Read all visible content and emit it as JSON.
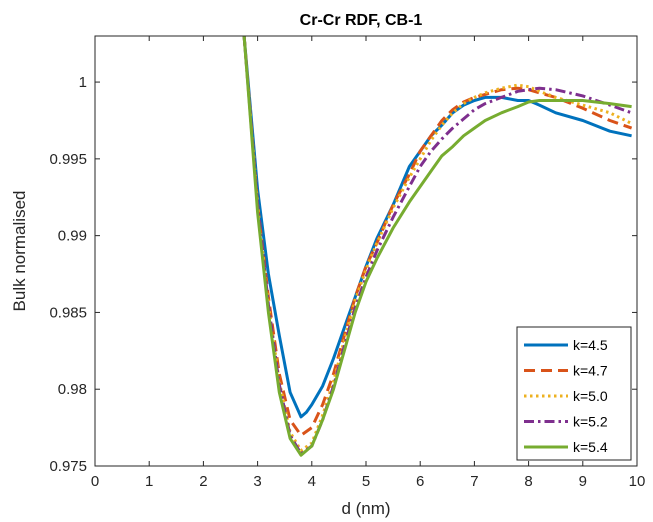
{
  "chart_data": {
    "type": "line",
    "title": "Cr-Cr RDF, CB-1",
    "xlabel": "d (nm)",
    "ylabel": "Bulk normalised",
    "xlim": [
      0,
      10
    ],
    "ylim": [
      0.975,
      1.003
    ],
    "xticks": [
      0,
      1,
      2,
      3,
      4,
      5,
      6,
      7,
      8,
      9,
      10
    ],
    "xtick_labels": [
      "0",
      "1",
      "2",
      "3",
      "4",
      "5",
      "6",
      "7",
      "8",
      "9",
      "10"
    ],
    "yticks": [
      0.975,
      0.98,
      0.985,
      0.99,
      0.995,
      1.0
    ],
    "ytick_labels": [
      "0.975",
      "0.98",
      "0.985",
      "0.99",
      "0.995",
      "1"
    ],
    "grid": false,
    "legend_position": "bottom-right",
    "series": [
      {
        "name": "k=4.5",
        "color": "#0072BD",
        "dash": "solid",
        "x": [
          2.75,
          3.0,
          3.2,
          3.4,
          3.6,
          3.8,
          3.9,
          4.0,
          4.2,
          4.4,
          4.6,
          4.8,
          5.0,
          5.2,
          5.5,
          5.8,
          6.0,
          6.2,
          6.4,
          6.6,
          6.8,
          7.0,
          7.2,
          7.5,
          7.8,
          8.0,
          8.2,
          8.5,
          9.0,
          9.5,
          9.9
        ],
        "y": [
          1.003,
          0.993,
          0.9875,
          0.9835,
          0.9798,
          0.9782,
          0.9785,
          0.979,
          0.9802,
          0.982,
          0.984,
          0.986,
          0.988,
          0.9898,
          0.992,
          0.9945,
          0.9955,
          0.9965,
          0.9972,
          0.998,
          0.9985,
          0.9988,
          0.999,
          0.999,
          0.9988,
          0.9988,
          0.9985,
          0.998,
          0.9975,
          0.9968,
          0.9965
        ]
      },
      {
        "name": "k=4.7",
        "color": "#D95319",
        "dash": "dashed",
        "x": [
          2.75,
          3.0,
          3.2,
          3.4,
          3.6,
          3.8,
          4.0,
          4.2,
          4.4,
          4.6,
          4.8,
          5.0,
          5.2,
          5.5,
          5.8,
          6.0,
          6.2,
          6.4,
          6.6,
          6.8,
          7.0,
          7.2,
          7.5,
          7.8,
          8.0,
          8.2,
          8.5,
          9.0,
          9.5,
          9.9
        ],
        "y": [
          1.003,
          0.992,
          0.986,
          0.981,
          0.978,
          0.977,
          0.9775,
          0.979,
          0.981,
          0.9835,
          0.986,
          0.988,
          0.9895,
          0.992,
          0.994,
          0.9955,
          0.9965,
          0.9975,
          0.9982,
          0.9987,
          0.999,
          0.9992,
          0.9995,
          0.9996,
          0.9995,
          0.9993,
          0.999,
          0.9983,
          0.9975,
          0.997
        ]
      },
      {
        "name": "k=5.0",
        "color": "#EDB120",
        "dash": "dotted",
        "x": [
          2.75,
          3.0,
          3.2,
          3.4,
          3.6,
          3.8,
          4.0,
          4.2,
          4.4,
          4.6,
          4.8,
          5.0,
          5.2,
          5.5,
          5.8,
          6.0,
          6.2,
          6.4,
          6.6,
          6.8,
          7.0,
          7.2,
          7.5,
          7.8,
          8.0,
          8.2,
          8.5,
          9.0,
          9.5,
          9.9
        ],
        "y": [
          1.003,
          0.992,
          0.9855,
          0.9805,
          0.9772,
          0.976,
          0.9765,
          0.9783,
          0.9805,
          0.9832,
          0.9858,
          0.9878,
          0.9895,
          0.9918,
          0.9938,
          0.995,
          0.9962,
          0.9972,
          0.998,
          0.9986,
          0.999,
          0.9993,
          0.9996,
          0.9998,
          0.9997,
          0.9994,
          0.999,
          0.9985,
          0.998,
          0.9973
        ]
      },
      {
        "name": "k=5.2",
        "color": "#7E2F8E",
        "dash": "dashdot",
        "x": [
          2.75,
          3.0,
          3.2,
          3.4,
          3.6,
          3.8,
          4.0,
          4.2,
          4.4,
          4.6,
          4.8,
          5.0,
          5.2,
          5.5,
          5.8,
          6.0,
          6.2,
          6.4,
          6.6,
          6.8,
          7.0,
          7.2,
          7.5,
          7.8,
          8.0,
          8.2,
          8.5,
          9.0,
          9.5,
          9.9
        ],
        "y": [
          1.003,
          0.992,
          0.9855,
          0.9803,
          0.977,
          0.9758,
          0.9763,
          0.978,
          0.9802,
          0.9828,
          0.9853,
          0.9873,
          0.989,
          0.9912,
          0.9932,
          0.9945,
          0.9955,
          0.9963,
          0.997,
          0.9976,
          0.9982,
          0.9986,
          0.999,
          0.9994,
          0.9995,
          0.9996,
          0.9995,
          0.9991,
          0.9985,
          0.998
        ]
      },
      {
        "name": "k=5.4",
        "color": "#77AC30",
        "dash": "solid",
        "x": [
          2.75,
          3.0,
          3.2,
          3.4,
          3.6,
          3.8,
          4.0,
          4.2,
          4.4,
          4.6,
          4.8,
          5.0,
          5.2,
          5.5,
          5.8,
          6.0,
          6.2,
          6.4,
          6.6,
          6.8,
          7.0,
          7.2,
          7.5,
          7.8,
          8.0,
          8.2,
          8.5,
          9.0,
          9.5,
          9.9
        ],
        "y": [
          1.003,
          0.9915,
          0.985,
          0.9798,
          0.9768,
          0.9757,
          0.9763,
          0.978,
          0.98,
          0.9825,
          0.985,
          0.987,
          0.9885,
          0.9905,
          0.9922,
          0.9932,
          0.9942,
          0.9952,
          0.9958,
          0.9965,
          0.997,
          0.9975,
          0.998,
          0.9984,
          0.9987,
          0.9988,
          0.9988,
          0.9988,
          0.9986,
          0.9984
        ]
      }
    ]
  }
}
